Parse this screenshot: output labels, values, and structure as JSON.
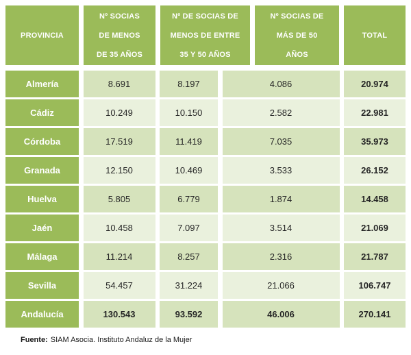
{
  "colors": {
    "header_bg": "#9BBB59",
    "band_dark": "#D6E3BC",
    "band_light": "#EAF1DD",
    "header_text": "#FFFFFF",
    "body_text": "#262626"
  },
  "table": {
    "headers": [
      "PROVINCIA",
      "Nº SOCIAS\nDE MENOS\nDE 35 AÑOS",
      "Nº DE SOCIAS DE\nMENOS DE ENTRE\n35 Y 50 AÑOS",
      "Nº SOCIAS DE\nMÁS DE 50\nAÑOS",
      "TOTAL"
    ],
    "rows": [
      {
        "name": "Almería",
        "values": [
          "8.691",
          "8.197",
          "4.086",
          "20.974"
        ]
      },
      {
        "name": "Cádiz",
        "values": [
          "10.249",
          "10.150",
          "2.582",
          "22.981"
        ]
      },
      {
        "name": "Córdoba",
        "values": [
          "17.519",
          "11.419",
          "7.035",
          "35.973"
        ]
      },
      {
        "name": "Granada",
        "values": [
          "12.150",
          "10.469",
          "3.533",
          "26.152"
        ]
      },
      {
        "name": "Huelva",
        "values": [
          "5.805",
          "6.779",
          "1.874",
          "14.458"
        ]
      },
      {
        "name": "Jaén",
        "values": [
          "10.458",
          "7.097",
          "3.514",
          "21.069"
        ]
      },
      {
        "name": "Málaga",
        "values": [
          "11.214",
          "8.257",
          "2.316",
          "21.787"
        ]
      },
      {
        "name": "Sevilla",
        "values": [
          "54.457",
          "31.224",
          "21.066",
          "106.747"
        ]
      },
      {
        "name": "Andalucía",
        "values": [
          "130.543",
          "93.592",
          "46.006",
          "270.141"
        ]
      }
    ]
  },
  "footer": {
    "label": "Fuente:",
    "text": "SIAM Asocia. Instituto Andaluz de la Mujer"
  }
}
